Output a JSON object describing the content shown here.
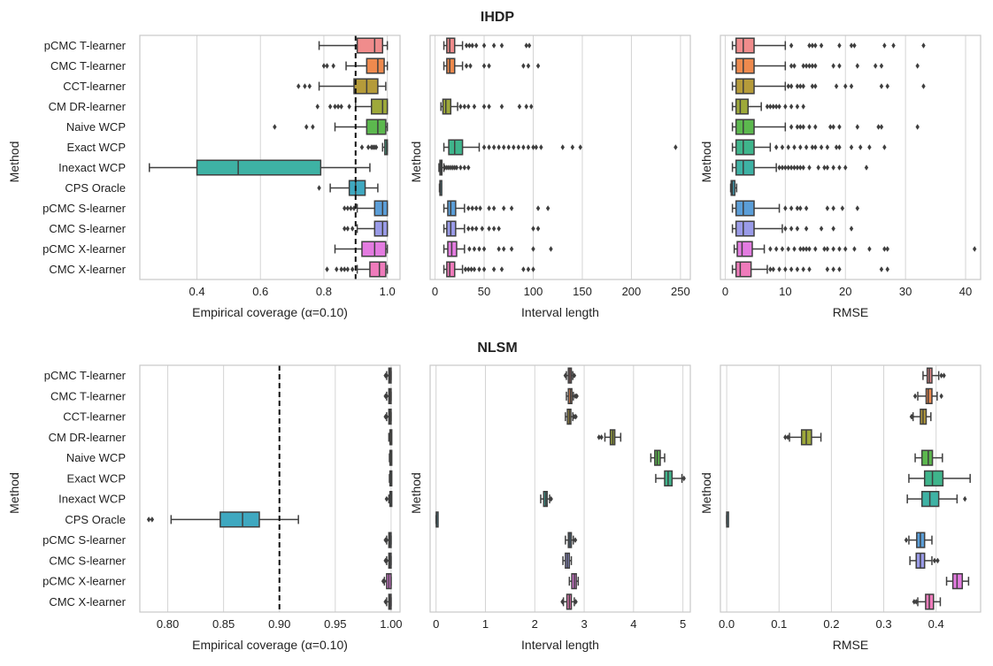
{
  "figure": {
    "panel_rows": [
      {
        "title": "IHDP"
      },
      {
        "title": "NLSM"
      }
    ],
    "ylabel": "Method",
    "methods": [
      "pCMC T-learner",
      "CMC T-learner",
      "CCT-learner",
      "CM DR-learner",
      "Naive WCP",
      "Exact WCP",
      "Inexact WCP",
      "CPS Oracle",
      "pCMC S-learner",
      "CMC S-learner",
      "pCMC X-learner",
      "CMC X-learner"
    ],
    "colors": [
      "#f08c8c",
      "#ee8a4e",
      "#b59b3a",
      "#9ea93a",
      "#5cb84e",
      "#3fb58c",
      "#3eb2a4",
      "#3fa8c0",
      "#5b9ed8",
      "#9a9be8",
      "#e37be0",
      "#ef7bbb"
    ]
  },
  "chart_data": [
    {
      "type": "box",
      "panel": "IHDP coverage",
      "xlabel": "Empirical coverage (α=0.10)",
      "xlim": [
        0.22,
        1.04
      ],
      "xticks": [
        0.4,
        0.6,
        0.8,
        1.0
      ],
      "xticklabels": [
        "0.4",
        "0.6",
        "0.8",
        "1.0"
      ],
      "reference_line": 0.9,
      "boxes": [
        {
          "q1": 0.905,
          "med": 0.96,
          "q3": 0.985,
          "wlo": 0.785,
          "whi": 1.0,
          "outliers": []
        },
        {
          "q1": 0.935,
          "med": 0.97,
          "q3": 0.99,
          "wlo": 0.87,
          "whi": 1.0,
          "outliers": [
            0.8,
            0.81,
            0.83
          ]
        },
        {
          "q1": 0.895,
          "med": 0.935,
          "q3": 0.97,
          "wlo": 0.785,
          "whi": 0.995,
          "outliers": [
            0.72,
            0.74,
            0.755
          ]
        },
        {
          "q1": 0.95,
          "med": 0.985,
          "q3": 1.0,
          "wlo": 0.9,
          "whi": 1.0,
          "outliers": [
            0.78,
            0.82,
            0.835,
            0.845,
            0.855,
            0.88
          ]
        },
        {
          "q1": 0.935,
          "med": 0.97,
          "q3": 0.995,
          "wlo": 0.835,
          "whi": 1.0,
          "outliers": [
            0.645,
            0.745,
            0.765
          ]
        },
        {
          "q1": 0.992,
          "med": 0.998,
          "q3": 1.0,
          "wlo": 0.985,
          "whi": 1.0,
          "outliers": [
            0.92,
            0.94,
            0.95,
            0.955,
            0.96,
            0.965
          ]
        },
        {
          "q1": 0.4,
          "med": 0.53,
          "q3": 0.79,
          "wlo": 0.25,
          "whi": 0.945,
          "outliers": []
        },
        {
          "q1": 0.88,
          "med": 0.9,
          "q3": 0.93,
          "wlo": 0.82,
          "whi": 0.97,
          "outliers": [
            0.785
          ]
        },
        {
          "q1": 0.96,
          "med": 0.985,
          "q3": 1.0,
          "wlo": 0.905,
          "whi": 1.0,
          "outliers": [
            0.865,
            0.875,
            0.885,
            0.895
          ]
        },
        {
          "q1": 0.96,
          "med": 0.985,
          "q3": 1.0,
          "wlo": 0.905,
          "whi": 1.0,
          "outliers": [
            0.865,
            0.875,
            0.89
          ]
        },
        {
          "q1": 0.92,
          "med": 0.96,
          "q3": 0.995,
          "wlo": 0.835,
          "whi": 1.0,
          "outliers": []
        },
        {
          "q1": 0.945,
          "med": 0.975,
          "q3": 0.995,
          "wlo": 0.905,
          "whi": 1.0,
          "outliers": [
            0.81,
            0.84,
            0.855,
            0.865,
            0.875,
            0.89
          ]
        }
      ]
    },
    {
      "type": "box",
      "panel": "IHDP interval length",
      "xlabel": "Interval length",
      "xlim": [
        -5,
        260
      ],
      "xticks": [
        0,
        50,
        100,
        150,
        200,
        250
      ],
      "xticklabels": [
        "0",
        "50",
        "100",
        "150",
        "200",
        "250"
      ],
      "boxes": [
        {
          "q1": 12,
          "med": 15,
          "q3": 20,
          "wlo": 9,
          "whi": 28,
          "outliers": [
            32,
            35,
            38,
            42,
            50,
            60,
            68,
            93,
            96
          ]
        },
        {
          "q1": 12,
          "med": 15,
          "q3": 20,
          "wlo": 9,
          "whi": 28,
          "outliers": [
            32,
            36,
            50,
            55,
            90,
            95,
            105
          ]
        },
        null,
        {
          "q1": 8,
          "med": 11,
          "q3": 16,
          "wlo": 6,
          "whi": 23,
          "outliers": [
            26,
            30,
            34,
            40,
            50,
            55,
            68,
            86,
            93,
            98
          ]
        },
        null,
        {
          "q1": 14,
          "med": 20,
          "q3": 28,
          "wlo": 9,
          "whi": 45,
          "outliers": [
            50,
            55,
            60,
            65,
            70,
            75,
            80,
            85,
            90,
            95,
            100,
            103,
            108,
            130,
            140,
            148,
            245
          ]
        },
        {
          "q1": 5,
          "med": 5.8,
          "q3": 7,
          "wlo": 4,
          "whi": 9,
          "outliers": [
            10,
            12,
            14,
            16,
            18,
            20,
            22,
            26,
            30,
            34
          ]
        },
        {
          "q1": 5,
          "med": 5.3,
          "q3": 6,
          "wlo": 4.5,
          "whi": 6.5,
          "outliers": []
        },
        {
          "q1": 13,
          "med": 16,
          "q3": 21,
          "wlo": 9,
          "whi": 30,
          "outliers": [
            34,
            38,
            42,
            46,
            55,
            60,
            70,
            78,
            105,
            115
          ]
        },
        {
          "q1": 12,
          "med": 16,
          "q3": 21,
          "wlo": 9,
          "whi": 30,
          "outliers": [
            34,
            38,
            42,
            48,
            55,
            60,
            65,
            100,
            105
          ]
        },
        {
          "q1": 13,
          "med": 17,
          "q3": 22,
          "wlo": 9,
          "whi": 30,
          "outliers": [
            35,
            40,
            45,
            50,
            65,
            70,
            78,
            100,
            118
          ]
        },
        {
          "q1": 12,
          "med": 15,
          "q3": 20,
          "wlo": 9,
          "whi": 28,
          "outliers": [
            31,
            34,
            37,
            40,
            45,
            50,
            60,
            68,
            90,
            95,
            100
          ]
        }
      ]
    },
    {
      "type": "box",
      "panel": "IHDP RMSE",
      "xlabel": "RMSE",
      "xlim": [
        -0.8,
        42.5
      ],
      "xticks": [
        0,
        10,
        20,
        30,
        40
      ],
      "xticklabels": [
        "0",
        "10",
        "20",
        "30",
        "40"
      ],
      "boxes": [
        {
          "q1": 1.8,
          "med": 3.0,
          "q3": 4.8,
          "wlo": 1.2,
          "whi": 10,
          "outliers": [
            11,
            14,
            14.5,
            15,
            16,
            19,
            21,
            21.5,
            26.5,
            28,
            33
          ]
        },
        {
          "q1": 1.8,
          "med": 3.0,
          "q3": 4.8,
          "wlo": 1.2,
          "whi": 10,
          "outliers": [
            11,
            11.5,
            13,
            13.5,
            14,
            14.5,
            15,
            18,
            19,
            22,
            25,
            26,
            32
          ]
        },
        {
          "q1": 1.8,
          "med": 3.0,
          "q3": 4.8,
          "wlo": 1.2,
          "whi": 10,
          "outliers": [
            10.5,
            11,
            12,
            12.5,
            13,
            14.5,
            15,
            18.5,
            20,
            21,
            26,
            27,
            33
          ]
        },
        {
          "q1": 1.8,
          "med": 2.5,
          "q3": 3.8,
          "wlo": 1.2,
          "whi": 6,
          "outliers": [
            7,
            7.5,
            8,
            8.5,
            9,
            10,
            11,
            12,
            13
          ]
        },
        {
          "q1": 1.8,
          "med": 3.0,
          "q3": 4.8,
          "wlo": 1.2,
          "whi": 10,
          "outliers": [
            11,
            12,
            12.5,
            13,
            14,
            15,
            17.5,
            18,
            19,
            22,
            25.5,
            26,
            32
          ]
        },
        {
          "q1": 1.8,
          "med": 3.0,
          "q3": 4.8,
          "wlo": 1.2,
          "whi": 7.5,
          "outliers": [
            8.5,
            9.5,
            10.5,
            11.5,
            12.5,
            13.5,
            14.5,
            15,
            16,
            17,
            18.5,
            19,
            21,
            22.5,
            24,
            26.5
          ]
        },
        {
          "q1": 1.8,
          "med": 3.0,
          "q3": 4.8,
          "wlo": 1.2,
          "whi": 8.5,
          "outliers": [
            9,
            9.5,
            10,
            10.5,
            11,
            11.5,
            12,
            12.5,
            13,
            14,
            15.5,
            16.5,
            17,
            18,
            19,
            20,
            23.5
          ]
        },
        {
          "q1": 1.0,
          "med": 1.2,
          "q3": 1.6,
          "wlo": 0.9,
          "whi": 1.9,
          "outliers": []
        },
        {
          "q1": 1.8,
          "med": 3.0,
          "q3": 4.8,
          "wlo": 1.2,
          "whi": 9,
          "outliers": [
            10,
            11,
            12,
            12.5,
            13.5,
            17,
            18,
            19.5,
            22
          ]
        },
        {
          "q1": 1.8,
          "med": 3.0,
          "q3": 4.8,
          "wlo": 1.2,
          "whi": 9.5,
          "outliers": [
            10,
            11,
            12,
            13.5,
            16,
            18,
            21
          ]
        },
        {
          "q1": 2.0,
          "med": 2.8,
          "q3": 4.5,
          "wlo": 1.5,
          "whi": 6.5,
          "outliers": [
            7.5,
            8.5,
            9.5,
            10.5,
            11.5,
            12.5,
            13,
            13.5,
            14,
            15,
            16.5,
            17,
            18,
            19,
            20,
            21.5,
            24,
            26.5,
            27,
            41.5
          ]
        },
        {
          "q1": 1.8,
          "med": 2.5,
          "q3": 4.3,
          "wlo": 1.2,
          "whi": 7,
          "outliers": [
            7.5,
            8,
            9,
            10,
            11,
            12,
            13,
            14,
            17,
            18,
            19,
            26,
            27
          ]
        }
      ]
    },
    {
      "type": "box",
      "panel": "NLSM coverage",
      "xlabel": "Empirical coverage (α=0.10)",
      "xlim": [
        0.775,
        1.008
      ],
      "xticks": [
        0.8,
        0.85,
        0.9,
        0.95,
        1.0
      ],
      "xticklabels": [
        "0.80",
        "0.85",
        "0.90",
        "0.95",
        "1.00"
      ],
      "reference_line": 0.9,
      "boxes": [
        {
          "q1": 0.998,
          "med": 0.999,
          "q3": 1.0,
          "wlo": 0.996,
          "whi": 1.0,
          "outliers": [
            0.995,
            0.996
          ]
        },
        {
          "q1": 0.998,
          "med": 0.999,
          "q3": 1.0,
          "wlo": 0.996,
          "whi": 1.0,
          "outliers": [
            0.995,
            0.996
          ]
        },
        {
          "q1": 0.998,
          "med": 0.999,
          "q3": 1.0,
          "wlo": 0.996,
          "whi": 1.0,
          "outliers": [
            0.995,
            0.996
          ]
        },
        {
          "q1": 0.999,
          "med": 1.0,
          "q3": 1.0,
          "wlo": 0.998,
          "whi": 1.0,
          "outliers": []
        },
        {
          "q1": 0.999,
          "med": 1.0,
          "q3": 1.0,
          "wlo": 0.9985,
          "whi": 1.0,
          "outliers": []
        },
        {
          "q1": 0.999,
          "med": 1.0,
          "q3": 1.0,
          "wlo": 0.9985,
          "whi": 1.0,
          "outliers": []
        },
        {
          "q1": 0.999,
          "med": 1.0,
          "q3": 1.0,
          "wlo": 0.998,
          "whi": 1.0,
          "outliers": [
            0.996
          ]
        },
        {
          "q1": 0.847,
          "med": 0.867,
          "q3": 0.882,
          "wlo": 0.803,
          "whi": 0.917,
          "outliers": [
            0.783,
            0.786
          ]
        },
        {
          "q1": 0.998,
          "med": 0.999,
          "q3": 1.0,
          "wlo": 0.996,
          "whi": 1.0,
          "outliers": [
            0.995,
            0.996
          ]
        },
        {
          "q1": 0.998,
          "med": 0.999,
          "q3": 1.0,
          "wlo": 0.996,
          "whi": 1.0,
          "outliers": [
            0.995,
            0.996
          ]
        },
        {
          "q1": 0.996,
          "med": 0.998,
          "q3": 1.0,
          "wlo": 0.994,
          "whi": 1.0,
          "outliers": [
            0.993,
            0.994
          ]
        },
        {
          "q1": 0.998,
          "med": 0.999,
          "q3": 1.0,
          "wlo": 0.996,
          "whi": 1.0,
          "outliers": [
            0.995
          ]
        }
      ]
    },
    {
      "type": "box",
      "panel": "NLSM interval length",
      "xlabel": "Interval length",
      "xlim": [
        -0.12,
        5.15
      ],
      "xticks": [
        0,
        1,
        2,
        3,
        4,
        5
      ],
      "xticklabels": [
        "0",
        "1",
        "2",
        "3",
        "4",
        "5"
      ],
      "boxes": [
        {
          "q1": 2.68,
          "med": 2.71,
          "q3": 2.74,
          "wlo": 2.64,
          "whi": 2.77,
          "outliers": [
            2.62,
            2.8
          ]
        },
        {
          "q1": 2.68,
          "med": 2.72,
          "q3": 2.75,
          "wlo": 2.64,
          "whi": 2.78,
          "outliers": [
            2.82,
            2.85
          ]
        },
        {
          "q1": 2.66,
          "med": 2.7,
          "q3": 2.73,
          "wlo": 2.62,
          "whi": 2.77,
          "outliers": [
            2.8,
            2.83
          ]
        },
        {
          "q1": 3.53,
          "med": 3.58,
          "q3": 3.62,
          "wlo": 3.42,
          "whi": 3.74,
          "outliers": [
            3.3,
            3.35
          ]
        },
        {
          "q1": 4.43,
          "med": 4.48,
          "q3": 4.54,
          "wlo": 4.35,
          "whi": 4.63,
          "outliers": []
        },
        {
          "q1": 4.63,
          "med": 4.7,
          "q3": 4.78,
          "wlo": 4.45,
          "whi": 4.98,
          "outliers": [
            5.02
          ]
        },
        {
          "q1": 2.18,
          "med": 2.22,
          "q3": 2.25,
          "wlo": 2.12,
          "whi": 2.3,
          "outliers": [
            2.33
          ]
        },
        {
          "q1": 0.005,
          "med": 0.008,
          "q3": 0.012,
          "wlo": 0.0,
          "whi": 0.015,
          "outliers": []
        },
        {
          "q1": 2.68,
          "med": 2.71,
          "q3": 2.74,
          "wlo": 2.62,
          "whi": 2.78,
          "outliers": [
            2.82
          ]
        },
        {
          "q1": 2.62,
          "med": 2.66,
          "q3": 2.7,
          "wlo": 2.57,
          "whi": 2.74,
          "outliers": []
        },
        {
          "q1": 2.75,
          "med": 2.8,
          "q3": 2.84,
          "wlo": 2.7,
          "whi": 2.88,
          "outliers": []
        },
        {
          "q1": 2.65,
          "med": 2.7,
          "q3": 2.74,
          "wlo": 2.58,
          "whi": 2.8,
          "outliers": [
            2.56,
            2.83
          ]
        }
      ]
    },
    {
      "type": "box",
      "panel": "NLSM RMSE",
      "xlabel": "RMSE",
      "xlim": [
        -0.012,
        0.485
      ],
      "xticks": [
        0.0,
        0.1,
        0.2,
        0.3,
        0.4
      ],
      "xticklabels": [
        "0.0",
        "0.1",
        "0.2",
        "0.3",
        "0.4"
      ],
      "boxes": [
        {
          "q1": 0.383,
          "med": 0.387,
          "q3": 0.392,
          "wlo": 0.375,
          "whi": 0.405,
          "outliers": [
            0.41,
            0.415
          ]
        },
        {
          "q1": 0.381,
          "med": 0.385,
          "q3": 0.392,
          "wlo": 0.365,
          "whi": 0.402,
          "outliers": [
            0.36,
            0.41
          ]
        },
        {
          "q1": 0.37,
          "med": 0.375,
          "q3": 0.381,
          "wlo": 0.356,
          "whi": 0.39,
          "outliers": [
            0.353,
            0.355
          ]
        },
        {
          "q1": 0.143,
          "med": 0.152,
          "q3": 0.162,
          "wlo": 0.12,
          "whi": 0.18,
          "outliers": [
            0.112,
            0.117
          ]
        },
        {
          "q1": 0.373,
          "med": 0.385,
          "q3": 0.393,
          "wlo": 0.36,
          "whi": 0.412,
          "outliers": []
        },
        {
          "q1": 0.378,
          "med": 0.393,
          "q3": 0.413,
          "wlo": 0.348,
          "whi": 0.465,
          "outliers": []
        },
        {
          "q1": 0.373,
          "med": 0.388,
          "q3": 0.405,
          "wlo": 0.345,
          "whi": 0.44,
          "outliers": [
            0.455
          ]
        },
        {
          "q1": 0.0,
          "med": 0.0005,
          "q3": 0.001,
          "wlo": 0.0,
          "whi": 0.002,
          "outliers": []
        },
        {
          "q1": 0.363,
          "med": 0.37,
          "q3": 0.378,
          "wlo": 0.348,
          "whi": 0.392,
          "outliers": [
            0.343
          ]
        },
        {
          "q1": 0.362,
          "med": 0.37,
          "q3": 0.378,
          "wlo": 0.35,
          "whi": 0.392,
          "outliers": [
            0.397,
            0.403
          ]
        },
        {
          "q1": 0.432,
          "med": 0.44,
          "q3": 0.45,
          "wlo": 0.42,
          "whi": 0.462,
          "outliers": []
        },
        {
          "q1": 0.38,
          "med": 0.387,
          "q3": 0.395,
          "wlo": 0.365,
          "whi": 0.408,
          "outliers": [
            0.358,
            0.362
          ]
        }
      ]
    }
  ]
}
